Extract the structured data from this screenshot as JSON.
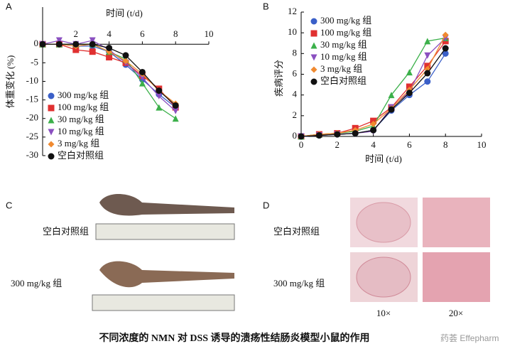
{
  "chart_data": [
    {
      "type": "line",
      "panel_label": "A",
      "xlabel": "时间 (t/d)",
      "ylabel": "体重变化 (%)",
      "x": [
        0,
        1,
        2,
        3,
        4,
        5,
        6,
        7,
        8
      ],
      "xlim": [
        0,
        10
      ],
      "xticks": [
        2,
        4,
        6,
        8,
        10
      ],
      "ylim": [
        -30,
        10
      ],
      "yticks": [
        -30,
        -25,
        -20,
        -15,
        -10,
        -5,
        0
      ],
      "legend": "lower left",
      "series": [
        {
          "name": "300 mg/kg 组",
          "color": "#3a5fc8",
          "marker": "circle",
          "values": [
            0,
            0,
            -0.5,
            -0.5,
            -2,
            -5.5,
            -9.5,
            -13.5,
            -17
          ]
        },
        {
          "name": "100 mg/kg 组",
          "color": "#e03030",
          "marker": "square",
          "values": [
            0,
            0,
            -1.5,
            -2,
            -3.5,
            -5,
            -8.5,
            -12,
            -17
          ]
        },
        {
          "name": "30 mg/kg 组",
          "color": "#3bb04a",
          "marker": "triangle",
          "values": [
            0,
            0,
            0,
            0,
            -2,
            -4,
            -10.5,
            -17,
            -20
          ]
        },
        {
          "name": "10 mg/kg 组",
          "color": "#8a4fc0",
          "marker": "triangle-down",
          "values": [
            0,
            1,
            0,
            1,
            -1.5,
            -5,
            -9,
            -14,
            -18
          ]
        },
        {
          "name": "3 mg/kg 组",
          "color": "#f08a30",
          "marker": "diamond",
          "values": [
            0,
            0,
            -0.5,
            0,
            -2,
            -4.5,
            -8,
            -12.5,
            -16
          ]
        },
        {
          "name": "空白对照组",
          "color": "#111111",
          "marker": "circle",
          "values": [
            0,
            0,
            0,
            0,
            -1,
            -3,
            -7.5,
            -12.5,
            -16.5
          ]
        }
      ]
    },
    {
      "type": "line",
      "panel_label": "B",
      "xlabel": "时间 (t/d)",
      "ylabel": "疾病评分",
      "x": [
        0,
        1,
        2,
        3,
        4,
        5,
        6,
        7,
        8
      ],
      "xlim": [
        0,
        10
      ],
      "xticks": [
        0,
        2,
        4,
        6,
        8,
        10
      ],
      "ylim": [
        0,
        12
      ],
      "yticks": [
        0,
        2,
        4,
        6,
        8,
        10,
        12
      ],
      "legend": "upper left",
      "series": [
        {
          "name": "300 mg/kg 组",
          "color": "#3a5fc8",
          "marker": "circle",
          "values": [
            0,
            0.1,
            0.2,
            0.3,
            0.6,
            2.5,
            4,
            5.3,
            8
          ]
        },
        {
          "name": "100 mg/kg 组",
          "color": "#e03030",
          "marker": "square",
          "values": [
            0,
            0.2,
            0.3,
            0.8,
            1.5,
            2.8,
            4.8,
            6.8,
            9.2
          ]
        },
        {
          "name": "30 mg/kg 组",
          "color": "#3bb04a",
          "marker": "triangle",
          "values": [
            0,
            0.2,
            0.3,
            0.5,
            1,
            4,
            6.2,
            9.2,
            9.5
          ]
        },
        {
          "name": "10 mg/kg 组",
          "color": "#8a4fc0",
          "marker": "triangle-down",
          "values": [
            0,
            0.1,
            0.2,
            0.3,
            0.5,
            2.8,
            4.3,
            7.8,
            9.5
          ]
        },
        {
          "name": "3 mg/kg 组",
          "color": "#f08a30",
          "marker": "diamond",
          "values": [
            0,
            0.2,
            0.3,
            0.6,
            1.2,
            2.7,
            4.5,
            6.5,
            9.8
          ]
        },
        {
          "name": "空白对照组",
          "color": "#111111",
          "marker": "circle",
          "values": [
            0,
            0.1,
            0.2,
            0.3,
            0.6,
            2.6,
            4.2,
            6.1,
            8.5
          ]
        }
      ]
    }
  ],
  "panel_c": {
    "label": "C",
    "rows": [
      "空白对照组",
      "300 mg/kg 组"
    ]
  },
  "panel_d": {
    "label": "D",
    "rows": [
      "空白对照组",
      "300 mg/kg 组"
    ],
    "columns": [
      "10×",
      "20×"
    ]
  },
  "caption": "不同浓度的 NMN 对 DSS 诱导的溃疡性结肠炎模型小鼠的作用",
  "watermark": "药荟 Effepharm"
}
